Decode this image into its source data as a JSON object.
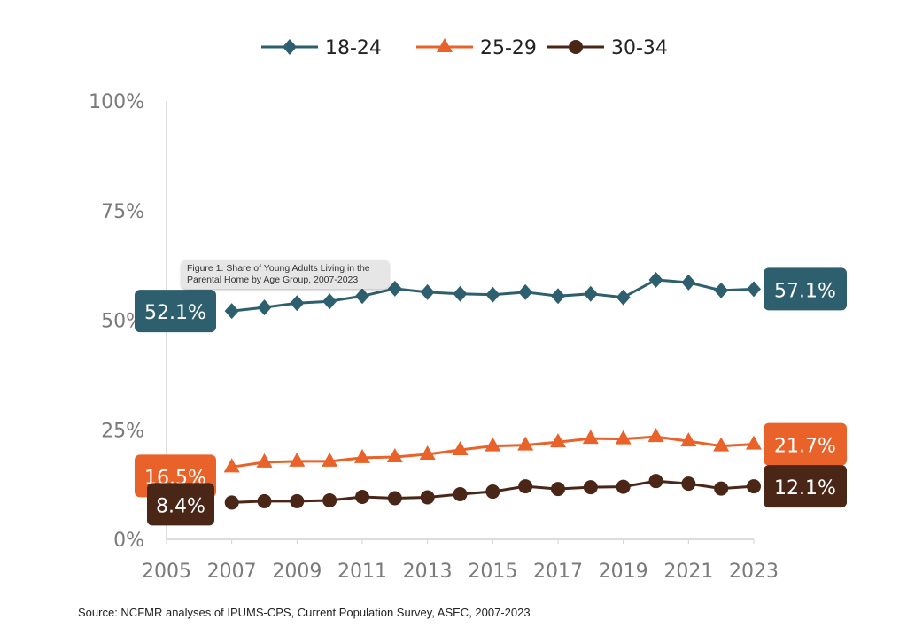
{
  "chart_data": {
    "type": "line",
    "tooltip": "Figure 1. Share of Young Adults Living in the Parental Home by Age Group, 2007-2023",
    "source": "Source: NCFMR analyses of IPUMS-CPS, Current Population Survey, ASEC, 2007-2023",
    "xlim": [
      2005,
      2023
    ],
    "ylim": [
      0,
      100
    ],
    "x_ticks": [
      "2005",
      "2007",
      "2009",
      "2011",
      "2013",
      "2015",
      "2017",
      "2019",
      "2021",
      "2023"
    ],
    "y_ticks": [
      "0%",
      "25%",
      "50%",
      "75%",
      "100%"
    ],
    "legend_position": "top",
    "grid": false,
    "x": [
      2007,
      2008,
      2009,
      2010,
      2011,
      2012,
      2013,
      2014,
      2015,
      2016,
      2017,
      2018,
      2019,
      2020,
      2021,
      2022,
      2023
    ],
    "series": [
      {
        "name": "18-24",
        "color": "#2e5f6e",
        "marker": "diamond",
        "start_label": "52.1%",
        "end_label": "57.1%",
        "values": [
          52.1,
          52.9,
          53.9,
          54.3,
          55.5,
          57.2,
          56.4,
          56.0,
          55.8,
          56.4,
          55.5,
          56.0,
          55.2,
          59.2,
          58.6,
          56.8,
          57.1
        ]
      },
      {
        "name": "25-29",
        "color": "#e8622a",
        "marker": "triangle",
        "start_label": "16.5%",
        "end_label": "21.7%",
        "values": [
          16.5,
          17.6,
          17.8,
          17.8,
          18.6,
          18.8,
          19.4,
          20.4,
          21.3,
          21.5,
          22.2,
          23.0,
          22.9,
          23.4,
          22.4,
          21.3,
          21.7
        ]
      },
      {
        "name": "30-34",
        "color": "#4a2617",
        "marker": "circle",
        "start_label": "8.4%",
        "end_label": "12.1%",
        "values": [
          8.4,
          8.7,
          8.7,
          8.9,
          9.7,
          9.4,
          9.6,
          10.3,
          10.9,
          12.1,
          11.5,
          11.9,
          12.0,
          13.3,
          12.7,
          11.6,
          12.1
        ]
      }
    ]
  }
}
